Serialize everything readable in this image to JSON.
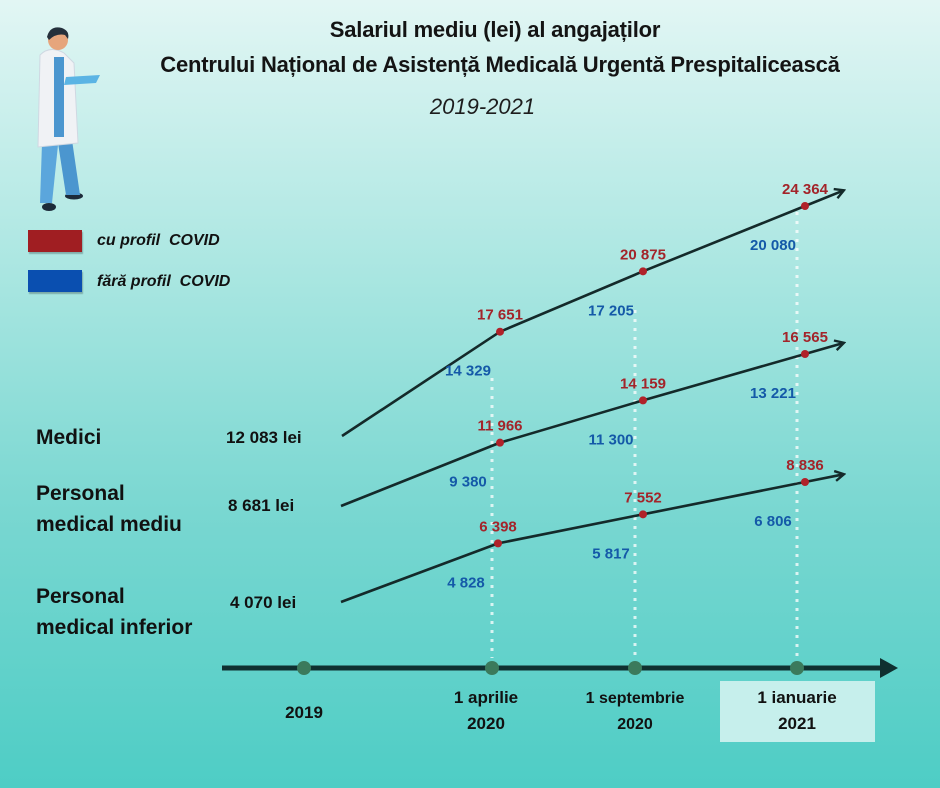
{
  "header": {
    "title_line1": "Salariul mediu (lei) al angajaților",
    "title_line2": "Centrului Național de Asistență Medicală Urgentă Prespitalicească",
    "subtitle": "2019-2021"
  },
  "illustration": {
    "icon": "doctor-with-clipboard-icon"
  },
  "legend": [
    {
      "label": "cu profil  COVID",
      "color": "#a01e22"
    },
    {
      "label": "fără profil  COVID",
      "color": "#0a4fb0"
    }
  ],
  "categories": [
    {
      "label_lines": [
        "Medici"
      ],
      "base": "12 083 lei"
    },
    {
      "label_lines": [
        "Personal",
        "medical mediu"
      ],
      "base": "8 681 lei"
    },
    {
      "label_lines": [
        "Personal",
        "medical inferior"
      ],
      "base": "4 070 lei"
    }
  ],
  "timeline": {
    "points": [
      {
        "lines": [
          "2019"
        ]
      },
      {
        "lines": [
          "1 aprilie",
          "2020"
        ]
      },
      {
        "lines": [
          "1 septembrie",
          "2020"
        ]
      },
      {
        "lines": [
          "1 ianuarie",
          "2021"
        ],
        "highlighted": true
      }
    ]
  },
  "chart_data": {
    "type": "line",
    "title": "Salariul mediu (lei) al angajaților Centrului Național de Asistență Medicală Urgentă Prespitalicească",
    "subtitle": "2019-2021",
    "x": [
      "2019",
      "1 aprilie 2020",
      "1 septembrie 2020",
      "1 ianuarie 2021"
    ],
    "xlabel": "",
    "ylabel": "lei",
    "legend_position": "top-left",
    "series": [
      {
        "name": "Medici",
        "baseline_2019": 12083,
        "cu_profil_covid": [
          null,
          17651,
          20875,
          24364
        ],
        "fara_profil_covid": [
          null,
          14329,
          17205,
          20080
        ]
      },
      {
        "name": "Personal medical mediu",
        "baseline_2019": 8681,
        "cu_profil_covid": [
          null,
          11966,
          14159,
          16565
        ],
        "fara_profil_covid": [
          null,
          9380,
          11300,
          13221
        ]
      },
      {
        "name": "Personal medical inferior",
        "baseline_2019": 4070,
        "cu_profil_covid": [
          null,
          6398,
          7552,
          8836
        ],
        "fara_profil_covid": [
          null,
          4828,
          5817,
          6806
        ]
      }
    ],
    "value_labels": {
      "Medici": {
        "red": [
          "17 651",
          "20 875",
          "24 364"
        ],
        "blue": [
          "14 329",
          "17 205",
          "20 080"
        ]
      },
      "Personal medical mediu": {
        "red": [
          "11 966",
          "14 159",
          "16 565"
        ],
        "blue": [
          "9 380",
          "11 300",
          "13 221"
        ]
      },
      "Personal medical inferior": {
        "red": [
          "6 398",
          "7 552",
          "8 836"
        ],
        "blue": [
          "4 828",
          "5 817",
          "6 806"
        ]
      }
    }
  }
}
